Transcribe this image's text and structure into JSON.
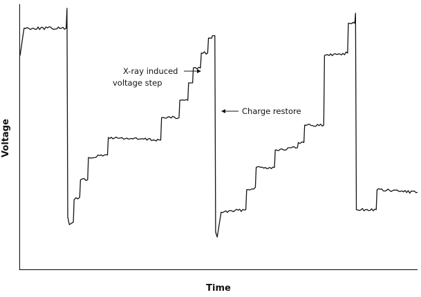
{
  "chart_data": {
    "type": "line",
    "xlabel": "Time",
    "ylabel": "Voltage",
    "xlim": [
      0,
      100
    ],
    "ylim": [
      0,
      100
    ],
    "grid": false,
    "series": [
      {
        "color": "#111111",
        "points": [
          [
            0.0,
            81
          ],
          [
            1.0,
            92
          ],
          [
            11.6,
            92
          ],
          [
            11.8,
            100
          ],
          [
            12.0,
            16
          ],
          [
            12.4,
            13
          ],
          [
            13.4,
            14
          ],
          [
            13.6,
            23
          ],
          [
            15.0,
            24
          ],
          [
            15.2,
            31
          ],
          [
            17.0,
            31
          ],
          [
            17.2,
            40
          ],
          [
            22.0,
            41
          ],
          [
            22.2,
            48
          ],
          [
            35.4,
            47
          ],
          [
            35.6,
            56
          ],
          [
            40.0,
            56
          ],
          [
            40.2,
            63
          ],
          [
            42.2,
            63
          ],
          [
            42.4,
            70
          ],
          [
            43.4,
            70
          ],
          [
            43.6,
            76
          ],
          [
            45.4,
            76
          ],
          [
            45.6,
            82
          ],
          [
            47.2,
            82
          ],
          [
            47.4,
            88
          ],
          [
            48.2,
            88
          ],
          [
            48.4,
            89
          ],
          [
            49.0,
            89
          ],
          [
            49.2,
            10
          ],
          [
            49.6,
            8
          ],
          [
            50.6,
            18
          ],
          [
            56.8,
            19
          ],
          [
            57.0,
            27
          ],
          [
            59.2,
            28
          ],
          [
            59.4,
            36
          ],
          [
            64.0,
            36
          ],
          [
            64.2,
            43
          ],
          [
            69.8,
            44
          ],
          [
            70.0,
            46
          ],
          [
            71.4,
            46
          ],
          [
            71.6,
            53
          ],
          [
            76.4,
            53
          ],
          [
            76.6,
            81
          ],
          [
            82.4,
            82
          ],
          [
            82.6,
            94
          ],
          [
            84.2,
            94
          ],
          [
            84.4,
            98
          ],
          [
            84.6,
            19
          ],
          [
            89.6,
            19
          ],
          [
            89.8,
            27
          ],
          [
            100.0,
            26
          ]
        ]
      }
    ],
    "annotations": [
      {
        "text_lines": [
          "X-ray induced",
          "voltage step"
        ],
        "target": [
          46.5,
          82
        ]
      },
      {
        "text_lines": [
          "Charge restore"
        ],
        "target": [
          49.2,
          59
        ]
      }
    ]
  }
}
